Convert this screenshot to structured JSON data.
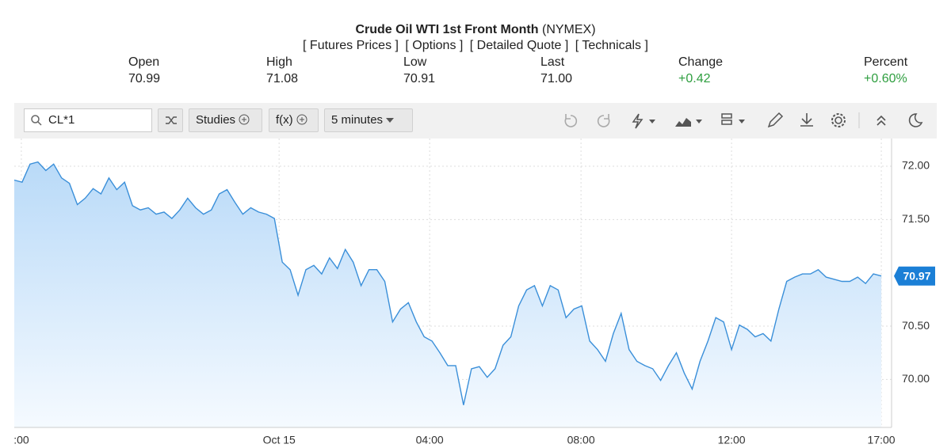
{
  "header": {
    "title": "Crude Oil WTI 1st Front Month",
    "exchange": "(NYMEX)",
    "links": [
      "[ Futures Prices ]",
      "[ Options ]",
      "[ Detailed Quote ]",
      "[ Technicals ]"
    ]
  },
  "quote": [
    {
      "label": "Open",
      "value": "70.99"
    },
    {
      "label": "High",
      "value": "71.08"
    },
    {
      "label": "Low",
      "value": "70.91"
    },
    {
      "label": "Last",
      "value": "71.00"
    },
    {
      "label": "Change",
      "value": "+0.42"
    },
    {
      "label": "Percent",
      "value": "+0.60%"
    }
  ],
  "toolbar": {
    "symbol": "CL*1",
    "studies": "Studies",
    "functions": "f(x)",
    "interval": "5 minutes"
  },
  "chart_data": {
    "type": "area",
    "color": "#3a8fd9",
    "values": [
      71.87,
      71.85,
      72.02,
      72.04,
      71.96,
      72.02,
      71.89,
      71.84,
      71.64,
      71.7,
      71.79,
      71.74,
      71.89,
      71.78,
      71.85,
      71.63,
      71.59,
      71.61,
      71.55,
      71.57,
      71.51,
      71.59,
      71.7,
      71.61,
      71.55,
      71.59,
      71.74,
      71.78,
      71.66,
      71.55,
      71.61,
      71.57,
      71.55,
      71.51,
      71.1,
      71.03,
      70.79,
      71.03,
      71.07,
      70.99,
      71.14,
      71.04,
      71.22,
      71.1,
      70.88,
      71.03,
      71.03,
      70.92,
      70.54,
      70.66,
      70.72,
      70.54,
      70.4,
      70.36,
      70.25,
      70.13,
      70.13,
      69.76,
      70.1,
      70.12,
      70.02,
      70.1,
      70.32,
      70.4,
      70.69,
      70.84,
      70.88,
      70.69,
      70.88,
      70.84,
      70.58,
      70.66,
      70.69,
      70.36,
      70.28,
      70.17,
      70.43,
      70.62,
      70.28,
      70.17,
      70.13,
      70.1,
      69.99,
      70.13,
      70.25,
      70.06,
      69.91,
      70.17,
      70.36,
      70.58,
      70.54,
      70.28,
      70.51,
      70.47,
      70.4,
      70.43,
      70.36,
      70.66,
      70.92,
      70.96,
      70.99,
      70.99,
      71.03,
      70.96,
      70.94,
      70.92,
      70.92,
      70.96,
      70.9,
      70.99,
      70.97
    ],
    "xlim": [
      0,
      111.3
    ],
    "xticks": [
      {
        "value": 0.9,
        "label": ":00"
      },
      {
        "value": 33.6,
        "label": "Oct 15"
      },
      {
        "value": 52.7,
        "label": "04:00"
      },
      {
        "value": 71.9,
        "label": "08:00"
      },
      {
        "value": 91.0,
        "label": "12:00"
      },
      {
        "value": 110,
        "label": "17:00"
      }
    ],
    "ylim": [
      69.55,
      72.26
    ],
    "yticks": [
      {
        "value": 70,
        "label": "70.00"
      },
      {
        "value": 70.5,
        "label": "70.50"
      },
      {
        "value": 71.5,
        "label": "71.50"
      },
      {
        "value": 72,
        "label": "72.00"
      }
    ],
    "grid": true
  }
}
